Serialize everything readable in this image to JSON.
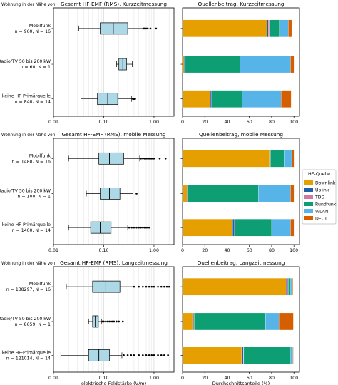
{
  "legend": {
    "title": "HF-Quelle",
    "entries": [
      {
        "name": "Downlink",
        "color": "#E69F00"
      },
      {
        "name": "Uplink",
        "color": "#1F5FA8"
      },
      {
        "name": "TDD",
        "color": "#CC79A7"
      },
      {
        "name": "Rundfunk",
        "color": "#0E9E73"
      },
      {
        "name": "WLAN",
        "color": "#56B4E9"
      },
      {
        "name": "DECT",
        "color": "#D55E00"
      }
    ]
  },
  "chart_data": [
    {
      "type": "box",
      "title": "Gesamt HF-EMF (RMS), Kurzzeitmessung",
      "corner_label": "Wohnung in der Nähe von",
      "xlabel": "",
      "xscale": "log",
      "xlim": [
        0.01,
        2.5
      ],
      "xticks": [
        "0.01",
        "0.10",
        "1.00"
      ],
      "grid": true,
      "categories": [
        {
          "name": "Mobilfunk",
          "info": "n = 960, N = 16"
        },
        {
          "name": "Radio/TV 50 bis 200 kW",
          "info": "n = 60, N = 1"
        },
        {
          "name": "keine HF-Primärquelle",
          "info": "n = 840, N = 14"
        }
      ],
      "boxes": [
        {
          "whislo": 0.032,
          "q1": 0.085,
          "med": 0.155,
          "q3": 0.3,
          "whishi": 0.6,
          "fliers": [
            0.63,
            0.66,
            0.7,
            0.75,
            0.85,
            1.1
          ]
        },
        {
          "whislo": 0.18,
          "q1": 0.2,
          "med": 0.24,
          "q3": 0.285,
          "whishi": 0.37,
          "fliers": []
        },
        {
          "whislo": 0.035,
          "q1": 0.075,
          "med": 0.12,
          "q3": 0.19,
          "whishi": 0.36,
          "fliers": [
            0.38,
            0.39,
            0.4,
            0.41,
            0.42
          ]
        }
      ]
    },
    {
      "type": "stacked_bar",
      "title": "Quellenbeitrag, Kurzzeitmessung",
      "xlabel": "",
      "xlim": [
        0,
        105
      ],
      "xticks": [
        "0",
        "20",
        "40",
        "60",
        "80",
        "100"
      ],
      "categories": [
        "Mobilfunk",
        "Radio/TV 50 bis 200 kW",
        "keine HF-Primärquelle"
      ],
      "series": [
        {
          "name": "Downlink",
          "values": [
            76,
            1.5,
            25
          ]
        },
        {
          "name": "Uplink",
          "values": [
            1,
            0.5,
            1
          ]
        },
        {
          "name": "TDD",
          "values": [
            1,
            0.5,
            0.5
          ]
        },
        {
          "name": "Rundfunk",
          "values": [
            9,
            49,
            27
          ]
        },
        {
          "name": "WLAN",
          "values": [
            8,
            45.5,
            35
          ]
        },
        {
          "name": "DECT",
          "values": [
            3,
            3,
            9
          ]
        }
      ]
    },
    {
      "type": "box",
      "title": "Gesamt HF-EMF (RMS), mobile Messung",
      "corner_label": "Wohnung in der Nähe von",
      "xlabel": "",
      "xscale": "log",
      "xlim": [
        0.01,
        2.5
      ],
      "xticks": [
        "0.01",
        "0.10",
        "1.00"
      ],
      "grid": true,
      "categories": [
        {
          "name": "Mobilfunk",
          "info": "n = 1480, N = 16"
        },
        {
          "name": "Radio/TV 50 bis 200 kW",
          "info": "n = 100, N = 1"
        },
        {
          "name": "keine HF-Primärquelle",
          "info": "n = 1400, N = 14"
        }
      ],
      "boxes": [
        {
          "whislo": 0.02,
          "q1": 0.08,
          "med": 0.13,
          "q3": 0.25,
          "whishi": 0.52,
          "fliers": [
            0.55,
            0.6,
            0.65,
            0.7,
            0.75,
            0.8,
            0.85,
            0.9,
            0.95,
            1.0,
            1.3,
            1.7
          ]
        },
        {
          "whislo": 0.045,
          "q1": 0.085,
          "med": 0.13,
          "q3": 0.21,
          "whishi": 0.38,
          "fliers": [
            0.45
          ]
        },
        {
          "whislo": 0.02,
          "q1": 0.055,
          "med": 0.085,
          "q3": 0.14,
          "whishi": 0.3,
          "fliers": [
            0.32,
            0.36,
            0.4,
            0.45,
            0.5,
            0.55,
            0.6,
            0.65,
            0.7,
            0.75,
            0.8
          ]
        }
      ]
    },
    {
      "type": "stacked_bar",
      "title": "Quellenbeitrag, mobile Messung",
      "xlabel": "",
      "xlim": [
        0,
        105
      ],
      "xticks": [
        "0",
        "20",
        "40",
        "60",
        "80",
        "100"
      ],
      "categories": [
        "Mobilfunk",
        "Radio/TV 50 bis 200 kW",
        "keine HF-Primärquelle"
      ],
      "series": [
        {
          "name": "Downlink",
          "values": [
            78,
            4,
            45
          ]
        },
        {
          "name": "Uplink",
          "values": [
            0.5,
            0.5,
            1.5
          ]
        },
        {
          "name": "TDD",
          "values": [
            0.5,
            0.5,
            0.5
          ]
        },
        {
          "name": "Rundfunk",
          "values": [
            12,
            63,
            33
          ]
        },
        {
          "name": "WLAN",
          "values": [
            7,
            29,
            17
          ]
        },
        {
          "name": "DECT",
          "values": [
            2,
            3,
            3
          ]
        }
      ]
    },
    {
      "type": "box",
      "title": "Gesamt HF-EMF (RMS), Langzeitmessung",
      "corner_label": "Wohnung in der Nähe von",
      "xlabel": "elektrische Feldstärke (V/m)",
      "xscale": "log",
      "xlim": [
        0.01,
        2.5
      ],
      "xticks": [
        "0.01",
        "0.10",
        "1.00"
      ],
      "grid": true,
      "categories": [
        {
          "name": "Mobilfunk",
          "info": "n = 138297, N = 16"
        },
        {
          "name": "Radio/TV 50 bis 200 kW",
          "info": "n = 8659, N = 1"
        },
        {
          "name": "keine HF-Primärquelle",
          "info": "n = 121014, N = 14"
        }
      ],
      "boxes": [
        {
          "whislo": 0.018,
          "q1": 0.06,
          "med": 0.11,
          "q3": 0.21,
          "whishi": 0.38,
          "fliers": [
            0.4,
            0.5,
            0.6,
            0.7,
            0.8,
            0.9,
            1.0,
            1.2,
            1.4,
            1.6,
            1.8,
            2.0
          ]
        },
        {
          "whislo": 0.05,
          "q1": 0.06,
          "med": 0.068,
          "q3": 0.078,
          "whishi": 0.09,
          "fliers": [
            0.095,
            0.1,
            0.11,
            0.12,
            0.13,
            0.14,
            0.15,
            0.16,
            0.18,
            0.2,
            0.24
          ]
        },
        {
          "whislo": 0.014,
          "q1": 0.05,
          "med": 0.08,
          "q3": 0.13,
          "whishi": 0.23,
          "fliers": [
            0.25,
            0.3,
            0.35,
            0.4,
            0.5,
            0.6,
            0.7,
            0.8,
            0.9,
            1.0,
            1.2,
            1.4,
            1.6,
            1.9
          ]
        }
      ]
    },
    {
      "type": "stacked_bar",
      "title": "Quellenbeitrag, Langzeitmessung",
      "xlabel": "Durchschnittsanteile (%)",
      "xlim": [
        0,
        105
      ],
      "xticks": [
        "0",
        "20",
        "40",
        "60",
        "80",
        "100"
      ],
      "categories": [
        "Mobilfunk",
        "Radio/TV 50 bis 200 kW",
        "keine HF-Primärquelle"
      ],
      "series": [
        {
          "name": "Downlink",
          "values": [
            93,
            9,
            53
          ]
        },
        {
          "name": "Uplink",
          "values": [
            1,
            1,
            1.5
          ]
        },
        {
          "name": "TDD",
          "values": [
            1,
            0.5,
            0.5
          ]
        },
        {
          "name": "Rundfunk",
          "values": [
            2,
            64,
            42
          ]
        },
        {
          "name": "WLAN",
          "values": [
            1,
            12,
            2
          ]
        },
        {
          "name": "DECT",
          "values": [
            1,
            13,
            0.5
          ]
        }
      ]
    }
  ]
}
